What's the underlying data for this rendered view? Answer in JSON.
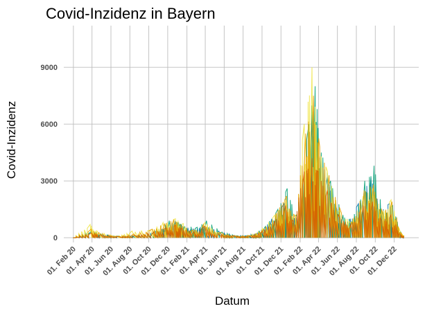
{
  "chart_data": {
    "type": "bar",
    "title": "Covid-Inzidenz in Bayern",
    "xlabel": "Datum",
    "ylabel": "Covid-Inzidenz",
    "x_ticks": [
      "01. Feb 20",
      "01. Apr 20",
      "01. Jun 20",
      "01. Aug 20",
      "01. Oct 20",
      "01. Dec 20",
      "01. Feb 21",
      "01. Apr 21",
      "01. Jun 21",
      "01. Aug 21",
      "01. Oct 21",
      "01. Dec 21",
      "01. Feb 22",
      "01. Apr 22",
      "01. Jun 22",
      "01. Aug 22",
      "01. Oct 22",
      "01. Dec 22"
    ],
    "x_range": [
      "2020-01-01",
      "2022-12-31"
    ],
    "y_ticks": [
      0,
      3000,
      6000,
      9000
    ],
    "ylim": [
      -250,
      11200
    ],
    "grid": true,
    "legend": "none",
    "colors": [
      "#0072B2",
      "#009E73",
      "#F0E442",
      "#E69F00",
      "#D55E00"
    ],
    "series": [
      {
        "values": [
          [
            0,
            0
          ],
          [
            60,
            300
          ],
          [
            95,
            150
          ],
          [
            150,
            60
          ],
          [
            200,
            100
          ],
          [
            260,
            250
          ],
          [
            300,
            600
          ],
          [
            330,
            900
          ],
          [
            350,
            700
          ],
          [
            380,
            450
          ],
          [
            420,
            650
          ],
          [
            470,
            350
          ],
          [
            520,
            120
          ],
          [
            560,
            100
          ],
          [
            600,
            300
          ],
          [
            640,
            1000
          ],
          [
            680,
            1800
          ],
          [
            700,
            700
          ],
          [
            740,
            2500
          ],
          [
            770,
            6500
          ],
          [
            790,
            4500
          ],
          [
            820,
            3200
          ],
          [
            850,
            1500
          ],
          [
            880,
            700
          ],
          [
            920,
            1800
          ],
          [
            960,
            3200
          ],
          [
            990,
            1500
          ],
          [
            1020,
            1800
          ],
          [
            1040,
            200
          ],
          [
            1067,
            100
          ]
        ]
      },
      {
        "values": [
          [
            0,
            0
          ],
          [
            60,
            400
          ],
          [
            90,
            200
          ],
          [
            150,
            70
          ],
          [
            210,
            120
          ],
          [
            270,
            350
          ],
          [
            310,
            900
          ],
          [
            340,
            800
          ],
          [
            360,
            600
          ],
          [
            400,
            550
          ],
          [
            430,
            900
          ],
          [
            480,
            300
          ],
          [
            530,
            100
          ],
          [
            580,
            150
          ],
          [
            620,
            600
          ],
          [
            660,
            1500
          ],
          [
            690,
            2600
          ],
          [
            720,
            1200
          ],
          [
            760,
            6000
          ],
          [
            780,
            8000
          ],
          [
            800,
            4500
          ],
          [
            830,
            3000
          ],
          [
            870,
            1200
          ],
          [
            900,
            900
          ],
          [
            940,
            3000
          ],
          [
            970,
            3800
          ],
          [
            1000,
            1200
          ],
          [
            1030,
            1700
          ],
          [
            1060,
            150
          ],
          [
            1067,
            80
          ]
        ]
      },
      {
        "values": [
          [
            0,
            0
          ],
          [
            55,
            700
          ],
          [
            80,
            300
          ],
          [
            140,
            80
          ],
          [
            190,
            350
          ],
          [
            250,
            400
          ],
          [
            290,
            800
          ],
          [
            330,
            1000
          ],
          [
            355,
            750
          ],
          [
            390,
            350
          ],
          [
            425,
            800
          ],
          [
            470,
            250
          ],
          [
            520,
            80
          ],
          [
            570,
            120
          ],
          [
            610,
            500
          ],
          [
            650,
            1200
          ],
          [
            685,
            2000
          ],
          [
            710,
            1000
          ],
          [
            745,
            6000
          ],
          [
            770,
            9000
          ],
          [
            790,
            5000
          ],
          [
            820,
            3500
          ],
          [
            860,
            1400
          ],
          [
            895,
            800
          ],
          [
            935,
            2200
          ],
          [
            965,
            2600
          ],
          [
            995,
            1400
          ],
          [
            1025,
            2000
          ],
          [
            1055,
            300
          ],
          [
            1067,
            100
          ]
        ]
      },
      {
        "values": [
          [
            0,
            0
          ],
          [
            58,
            450
          ],
          [
            85,
            250
          ],
          [
            145,
            70
          ],
          [
            195,
            200
          ],
          [
            255,
            450
          ],
          [
            295,
            750
          ],
          [
            325,
            950
          ],
          [
            345,
            700
          ],
          [
            385,
            400
          ],
          [
            420,
            700
          ],
          [
            475,
            280
          ],
          [
            525,
            90
          ],
          [
            575,
            110
          ],
          [
            615,
            450
          ],
          [
            655,
            1300
          ],
          [
            688,
            2200
          ],
          [
            715,
            1100
          ],
          [
            750,
            5500
          ],
          [
            775,
            7500
          ],
          [
            795,
            4800
          ],
          [
            825,
            3300
          ],
          [
            865,
            1300
          ],
          [
            898,
            850
          ],
          [
            938,
            2500
          ],
          [
            968,
            2800
          ],
          [
            998,
            1300
          ],
          [
            1028,
            1900
          ],
          [
            1058,
            250
          ],
          [
            1067,
            90
          ]
        ]
      },
      {
        "values": [
          [
            0,
            0
          ],
          [
            60,
            250
          ],
          [
            90,
            150
          ],
          [
            150,
            50
          ],
          [
            200,
            120
          ],
          [
            260,
            300
          ],
          [
            300,
            500
          ],
          [
            330,
            650
          ],
          [
            350,
            500
          ],
          [
            390,
            300
          ],
          [
            425,
            600
          ],
          [
            470,
            200
          ],
          [
            520,
            80
          ],
          [
            570,
            90
          ],
          [
            610,
            350
          ],
          [
            650,
            900
          ],
          [
            685,
            1700
          ],
          [
            710,
            900
          ],
          [
            745,
            3500
          ],
          [
            770,
            4200
          ],
          [
            790,
            3500
          ],
          [
            820,
            2500
          ],
          [
            860,
            1000
          ],
          [
            895,
            700
          ],
          [
            935,
            1700
          ],
          [
            965,
            1900
          ],
          [
            995,
            900
          ],
          [
            1025,
            1200
          ],
          [
            1055,
            200
          ],
          [
            1067,
            60
          ]
        ]
      }
    ]
  }
}
